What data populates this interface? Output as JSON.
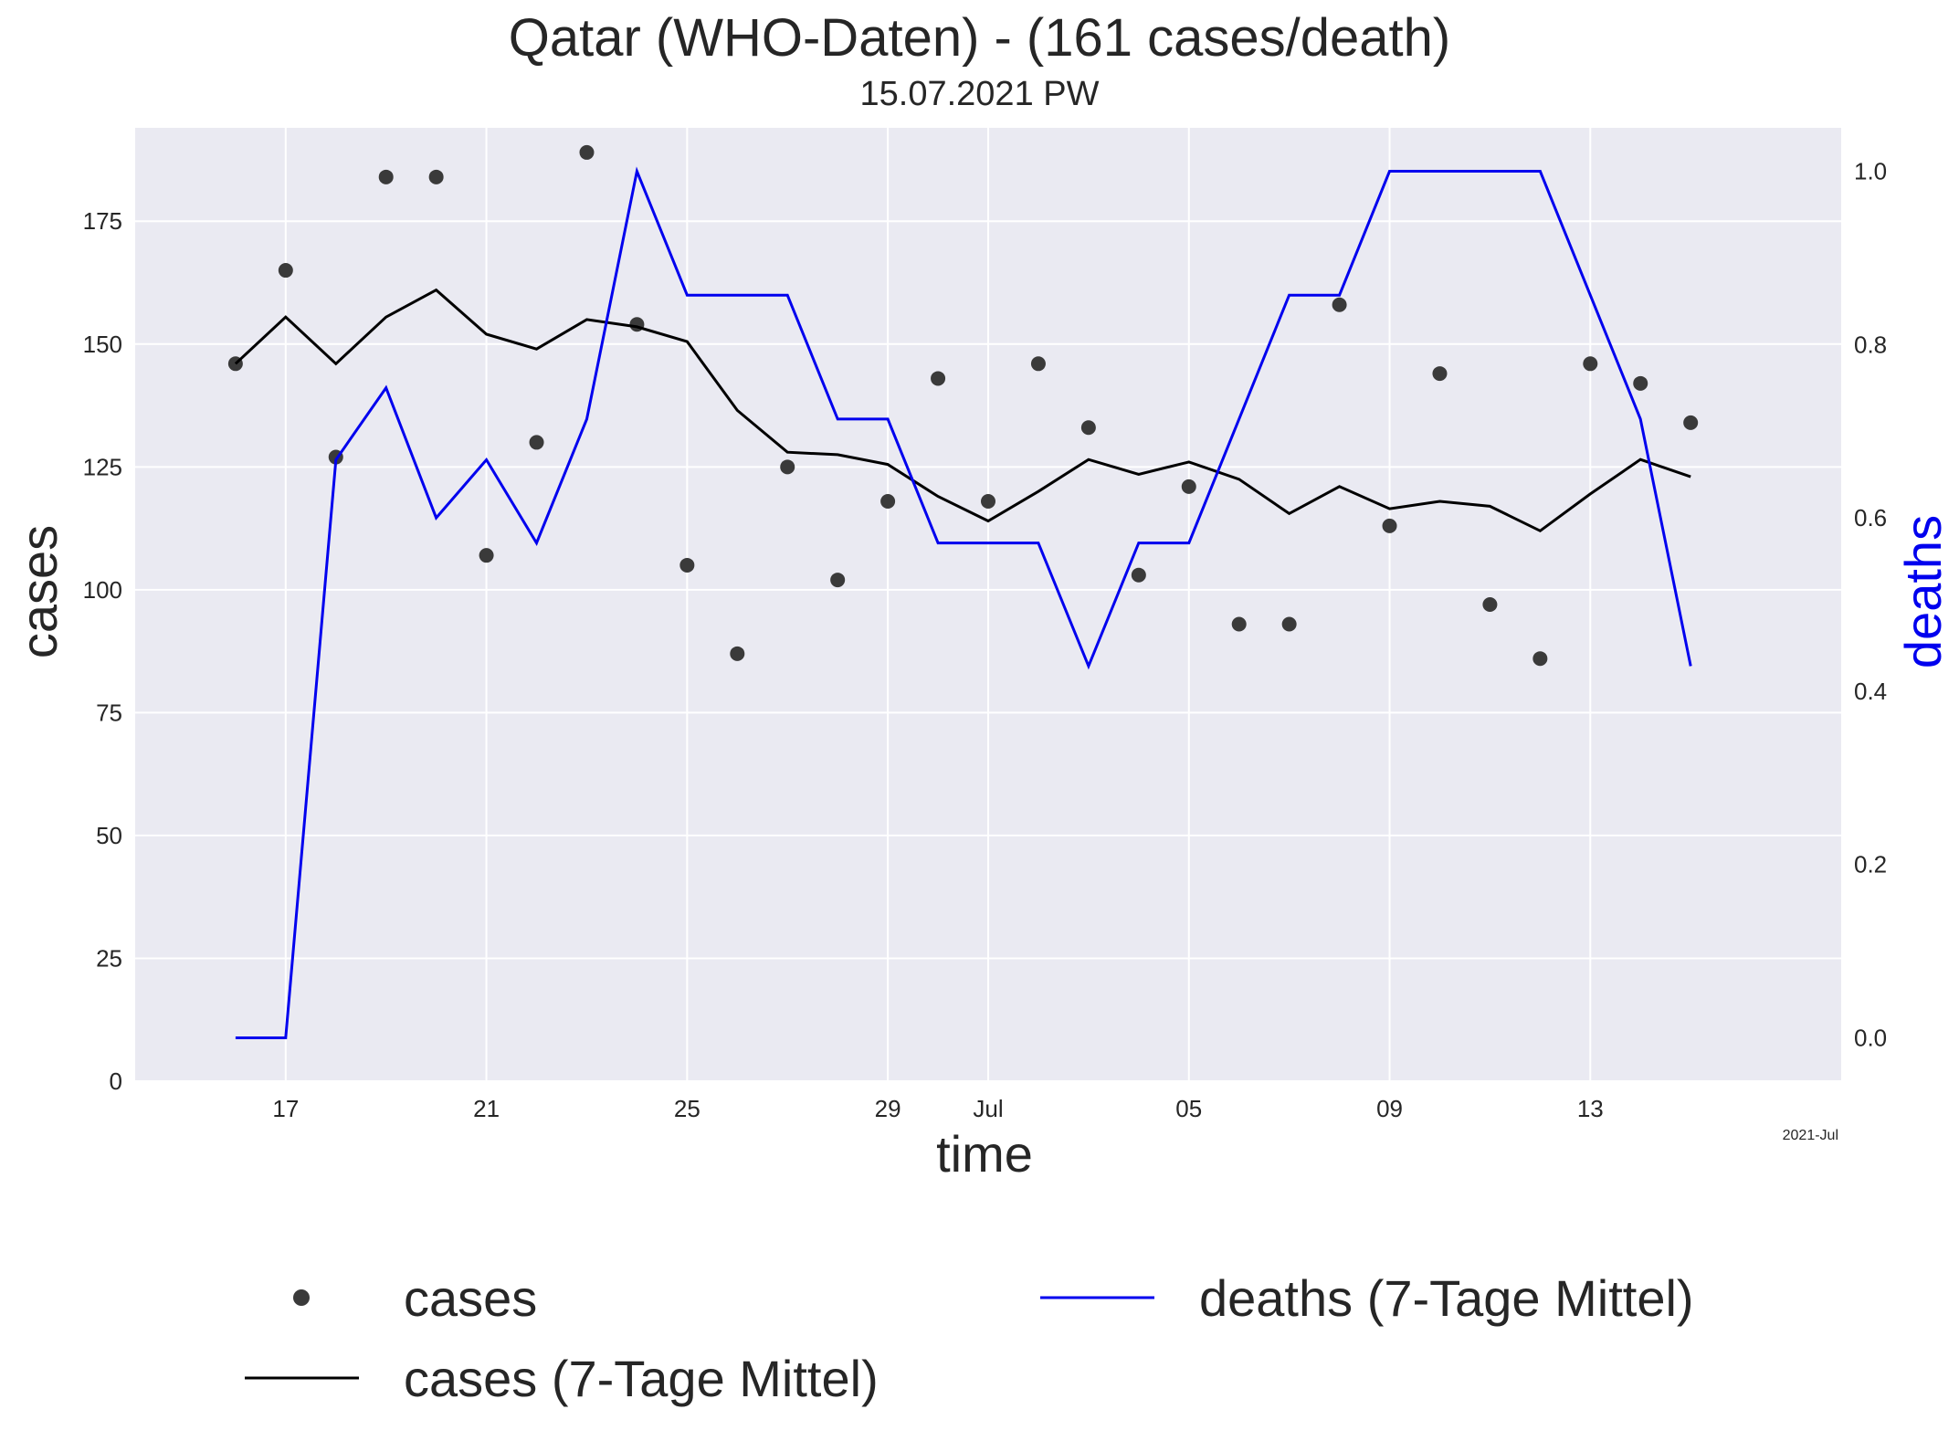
{
  "title": "Qatar (WHO-Daten) - (161 cases/death)",
  "subtitle": "15.07.2021 PW",
  "colors": {
    "plot_background": "#eaeaf2",
    "grid": "#ffffff",
    "cases_points": "#3a3a3a",
    "cases_avg": "#000000",
    "deaths_avg": "#0000ee",
    "deaths_axis_label": "#0000ee"
  },
  "chart_data": {
    "type": "line",
    "xlabel": "time",
    "ylabel": "cases",
    "y2label": "deaths",
    "x_offset_label": "2021-Jul",
    "ylim": [
      0,
      194
    ],
    "y2lim": [
      -0.05,
      1.05
    ],
    "grid": true,
    "legend_position": "bottom",
    "x_tick_labels": [
      "17",
      "21",
      "25",
      "29",
      "Jul",
      "05",
      "09",
      "13"
    ],
    "x_ticks": [
      "2021-06-17",
      "2021-06-21",
      "2021-06-25",
      "2021-06-29",
      "2021-07-01",
      "2021-07-05",
      "2021-07-09",
      "2021-07-13"
    ],
    "y_ticks": [
      0,
      25,
      50,
      75,
      100,
      125,
      150,
      175
    ],
    "y2_ticks": [
      "0.0",
      "0.2",
      "0.4",
      "0.6",
      "0.8",
      "1.0"
    ],
    "x": [
      "2021-06-16",
      "2021-06-17",
      "2021-06-18",
      "2021-06-19",
      "2021-06-20",
      "2021-06-21",
      "2021-06-22",
      "2021-06-23",
      "2021-06-24",
      "2021-06-25",
      "2021-06-26",
      "2021-06-27",
      "2021-06-28",
      "2021-06-29",
      "2021-06-30",
      "2021-07-01",
      "2021-07-02",
      "2021-07-03",
      "2021-07-04",
      "2021-07-05",
      "2021-07-06",
      "2021-07-07",
      "2021-07-08",
      "2021-07-09",
      "2021-07-10",
      "2021-07-11",
      "2021-07-12",
      "2021-07-13",
      "2021-07-14",
      "2021-07-15"
    ],
    "series": [
      {
        "name": "cases",
        "kind": "scatter",
        "axis": "left",
        "values": [
          146,
          165,
          127,
          184,
          184,
          107,
          130,
          189,
          154,
          105,
          87,
          125,
          102,
          118,
          143,
          118,
          146,
          133,
          103,
          121,
          93,
          93,
          158,
          113,
          144,
          97,
          86,
          146,
          142,
          134
        ]
      },
      {
        "name": "cases (7-Tage Mittel)",
        "kind": "line",
        "axis": "left",
        "values": [
          146,
          155.5,
          146,
          155.5,
          161,
          152,
          149,
          155,
          153.5,
          150.5,
          136.5,
          128,
          127.5,
          125.5,
          119,
          114,
          120,
          126.5,
          123.5,
          126,
          122.5,
          115.5,
          121,
          116.5,
          118,
          117,
          112,
          119.5,
          126.5,
          123
        ]
      },
      {
        "name": "deaths (7-Tage Mittel)",
        "kind": "line",
        "axis": "right",
        "values": [
          0,
          0,
          0.667,
          0.75,
          0.6,
          0.667,
          0.571,
          0.714,
          1.0,
          0.857,
          0.857,
          0.857,
          0.714,
          0.714,
          0.571,
          0.571,
          0.571,
          0.429,
          0.571,
          0.571,
          0.714,
          0.857,
          0.857,
          1.0,
          1.0,
          1.0,
          1.0,
          0.857,
          0.714,
          0.429
        ]
      }
    ]
  },
  "legend": {
    "cases": "cases",
    "cases_avg": "cases (7-Tage Mittel)",
    "deaths_avg": "deaths (7-Tage Mittel)"
  }
}
